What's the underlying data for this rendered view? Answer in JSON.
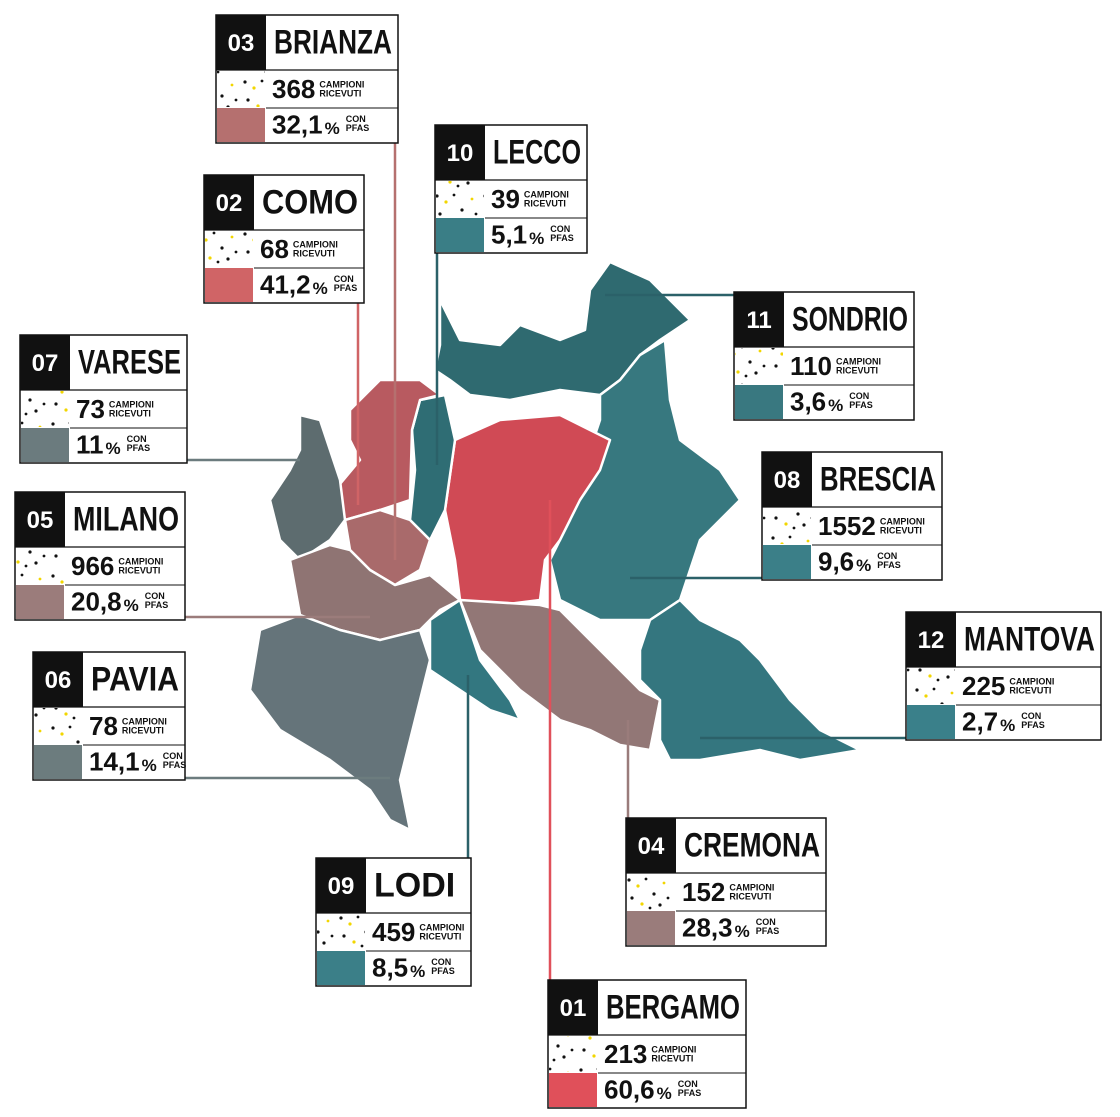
{
  "labels": {
    "samples_line1": "CAMPIONI",
    "samples_line2": "RICEVUTI",
    "percent_sign": "%",
    "pfas_line1": "CON",
    "pfas_line2": "PFAS"
  },
  "provinces": [
    {
      "number": "03",
      "name": "BRIANZA",
      "samples": 368,
      "pfas_share": "32,1"
    },
    {
      "number": "02",
      "name": "COMO",
      "samples": 68,
      "pfas_share": "41,2"
    },
    {
      "number": "10",
      "name": "LECCO",
      "samples": 39,
      "pfas_share": "5,1"
    },
    {
      "number": "07",
      "name": "VARESE",
      "samples": 73,
      "pfas_share": "11"
    },
    {
      "number": "05",
      "name": "MILANO",
      "samples": 966,
      "pfas_share": "20,8"
    },
    {
      "number": "06",
      "name": "PAVIA",
      "samples": 78,
      "pfas_share": "14,1"
    },
    {
      "number": "09",
      "name": "LODI",
      "samples": 459,
      "pfas_share": "8,5"
    },
    {
      "number": "01",
      "name": "BERGAMO",
      "samples": 213,
      "pfas_share": "60,6"
    },
    {
      "number": "04",
      "name": "CREMONA",
      "samples": 152,
      "pfas_share": "28,3"
    },
    {
      "number": "12",
      "name": "MANTOVA",
      "samples": 225,
      "pfas_share": "2,7"
    },
    {
      "number": "08",
      "name": "BRESCIA",
      "samples": 1552,
      "pfas_share": "9,6"
    },
    {
      "number": "11",
      "name": "SONDRIO",
      "samples": 110,
      "pfas_share": "3,6"
    }
  ]
}
